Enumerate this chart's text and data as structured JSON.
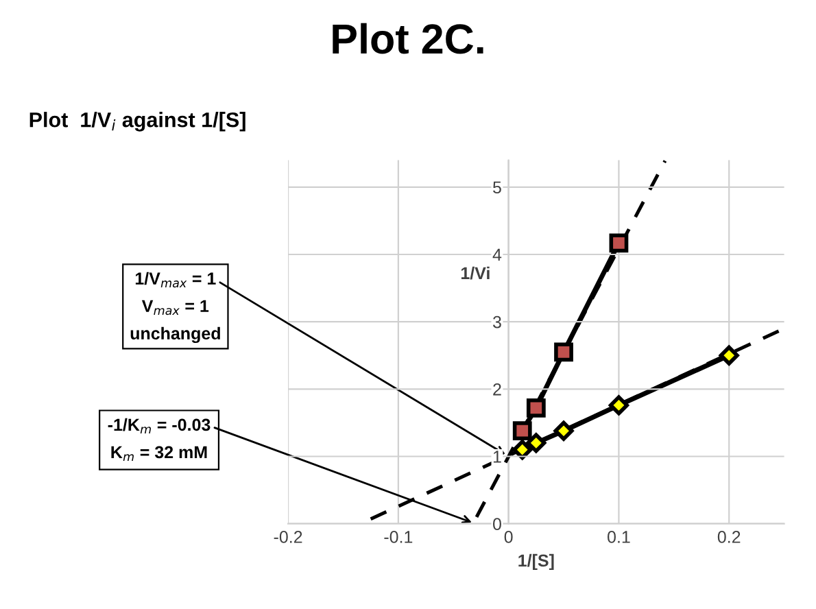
{
  "chart_data": {
    "type": "line",
    "title": "Plot 2C.",
    "subtitle": "Plot  1/V$_{i}$ against 1/[S]",
    "xlabel": "1/[S]",
    "ylabel": "1/Vi",
    "xlim": [
      -0.2,
      0.25
    ],
    "ylim": [
      0,
      5.4
    ],
    "xticks": [
      -0.2,
      -0.1,
      0,
      0.1,
      0.2
    ],
    "yticks": [
      0,
      1,
      2,
      3,
      4,
      5
    ],
    "grid": true,
    "series": [
      {
        "color": "#c0504d",
        "marker": "square",
        "line_style": "solid",
        "x": [
          0.0125,
          0.025,
          0.05,
          0.1
        ],
        "values": [
          1.38,
          1.72,
          2.55,
          4.17
        ]
      },
      {
        "color": "#ffff00",
        "marker": "diamond",
        "line_style": "solid",
        "x": [
          0.0125,
          0.025,
          0.05,
          0.1,
          0.2
        ],
        "values": [
          1.1,
          1.2,
          1.38,
          1.76,
          2.5
        ]
      },
      {
        "color": "#000000",
        "marker": "none",
        "line_style": "dashed",
        "x": [
          -0.029,
          0.142
        ],
        "values": [
          0.1,
          5.39
        ]
      },
      {
        "color": "#000000",
        "marker": "none",
        "line_style": "dashed",
        "x": [
          -0.125,
          0.25
        ],
        "values": [
          0.07,
          2.9
        ]
      }
    ],
    "annotations": [
      {
        "text": "1/V$_{max}$ = 1",
        "x": 0,
        "y": 1
      },
      "V$_{max}$ = 1",
      "unchanged",
      {
        "text": "-1/K$_{m}$ = -0.03",
        "x": -0.03,
        "y": 0
      },
      "K$_{m}$ = 32 mM"
    ]
  }
}
